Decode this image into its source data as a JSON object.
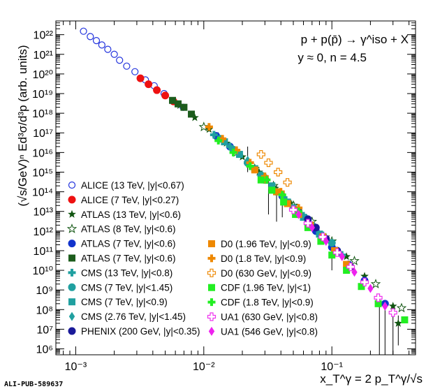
{
  "watermark": "ALI-PUB-589637",
  "chart_data": {
    "type": "scatter",
    "x_scale": "log",
    "y_scale": "log",
    "xlim": [
      0.0007,
      0.45
    ],
    "ylim": [
      500000,
      5e+22
    ],
    "ylabel": "(√s/GeV)ⁿ Ed³σ/d³p (arb. units)",
    "xlabel": "x_T^γ = 2 p_T^γ/√s",
    "annotation_lines": [
      "p + p(p̄) → γ^iso + X",
      "y ≈ 0, n = 4.5"
    ],
    "x_ticks": [
      "10⁻³",
      "10⁻²",
      "10⁻¹"
    ],
    "y_ticks": [
      "10⁶",
      "10⁷",
      "10⁸",
      "10⁹",
      "10¹⁰",
      "10¹¹",
      "10¹²",
      "10¹³",
      "10¹⁴",
      "10¹⁵",
      "10¹⁶",
      "10¹⁷",
      "10¹⁸",
      "10¹⁹",
      "10²⁰",
      "10²¹",
      "10²²"
    ],
    "legend_placement": "lower-left",
    "series": [
      {
        "name": "ALICE (13 TeV, |y|<0.67)",
        "color": "#2233dd",
        "marker": "circle-open",
        "points": [
          [
            0.00115,
            1.5e+22
          ],
          [
            0.0013,
            8e+21
          ],
          [
            0.00145,
            5e+21
          ],
          [
            0.0016,
            3e+21
          ],
          [
            0.00178,
            1.8e+21
          ],
          [
            0.002,
            1e+21
          ],
          [
            0.0022,
            5e+20
          ],
          [
            0.0025,
            2.5e+20
          ],
          [
            0.0029,
            1.3e+20
          ],
          [
            0.0035,
            5e+19
          ],
          [
            0.0041,
            2.5e+19
          ],
          [
            0.0049,
            1e+19
          ],
          [
            0.0058,
            4e+18
          ],
          [
            0.0069,
            2e+18
          ]
        ]
      },
      {
        "name": "ALICE (7 TeV, |y|<0.27)",
        "color": "#ee1111",
        "marker": "circle",
        "points": [
          [
            0.0032,
            6e+19
          ],
          [
            0.0037,
            3e+19
          ],
          [
            0.0043,
            1.5e+19
          ],
          [
            0.005,
            8e+18
          ],
          [
            0.0058,
            4e+18
          ]
        ]
      },
      {
        "name": "ATLAS (13 TeV, |y|<0.6)",
        "color": "#115511",
        "marker": "star",
        "points": [
          [
            0.0065,
            2.5e+18
          ],
          [
            0.0085,
            6e+17
          ],
          [
            0.011,
            1.5e+17
          ],
          [
            0.015,
            3e+16
          ],
          [
            0.02,
            6000000000000000.0
          ],
          [
            0.027,
            1000000000000000.0
          ],
          [
            0.036,
            150000000000000.0
          ],
          [
            0.048,
            25000000000000.0
          ],
          [
            0.065,
            4000000000000.0
          ],
          [
            0.09,
            500000000000.0
          ],
          [
            0.13,
            50000000000.0
          ],
          [
            0.18,
            5000000000.0
          ],
          [
            0.3,
            150000000.0
          ],
          [
            0.33,
            20000000.0
          ]
        ]
      },
      {
        "name": "ATLAS (8 TeV, |y|<0.6)",
        "color": "#115511",
        "marker": "star-open",
        "points": [
          [
            0.01,
            2e+17
          ],
          [
            0.013,
            6e+16
          ],
          [
            0.018,
            1e+16
          ],
          [
            0.025,
            1500000000000000.0
          ],
          [
            0.035,
            200000000000000.0
          ],
          [
            0.05,
            20000000000000.0
          ],
          [
            0.07,
            3000000000000.0
          ],
          [
            0.1,
            300000000000.0
          ],
          [
            0.15,
            30000000000.0
          ],
          [
            0.22,
            2000000000.0
          ],
          [
            0.35,
            120000000.0
          ]
        ]
      },
      {
        "name": "ATLAS (7 TeV, |y|<0.6)",
        "color": "#1133cc",
        "marker": "circle",
        "points": [
          [
            0.0125,
            7e+16
          ],
          [
            0.016,
            2e+16
          ],
          [
            0.022,
            3000000000000000.0
          ],
          [
            0.03,
            500000000000000.0
          ],
          [
            0.041,
            60000000000000.0
          ],
          [
            0.055,
            8000000000000.0
          ],
          [
            0.075,
            1000000000000.0
          ],
          [
            0.1,
            150000000000.0
          ],
          [
            0.135,
            20000000000.0
          ],
          [
            0.18,
            3000000000.0
          ],
          [
            0.26,
            200000000.0
          ]
        ]
      },
      {
        "name": "ATLAS (7 TeV, |y|<0.6)",
        "color": "#1c5c1c",
        "marker": "square",
        "points": [
          [
            0.0057,
            4.5e+18
          ],
          [
            0.0063,
            3e+18
          ],
          [
            0.007,
            2e+18
          ],
          [
            0.008,
            9e+17
          ]
        ]
      },
      {
        "name": "CMS (13 TeV, |y|<0.8)",
        "color": "#20a0a0",
        "marker": "cross",
        "points": [
          [
            0.012,
            8e+16
          ],
          [
            0.016,
            2e+16
          ],
          [
            0.022,
            3000000000000000.0
          ],
          [
            0.03,
            400000000000000.0
          ],
          [
            0.042,
            50000000000000.0
          ],
          [
            0.06,
            6000000000000.0
          ],
          [
            0.085,
            600000000000.0
          ],
          [
            0.12,
            60000000000.0
          ]
        ]
      },
      {
        "name": "CMS (7 TeV, |y|<1.45)",
        "color": "#20a0a0",
        "marker": "circle",
        "points": [
          [
            0.0135,
            5e+16
          ],
          [
            0.017,
            1.4e+16
          ],
          [
            0.022,
            3000000000000000.0
          ],
          [
            0.028,
            700000000000000.0
          ],
          [
            0.037,
            100000000000000.0
          ],
          [
            0.05,
            15000000000000.0
          ],
          [
            0.07,
            2000000000000.0
          ],
          [
            0.1,
            250000000000.0
          ]
        ]
      },
      {
        "name": "CMS (7 TeV, |y|<0.9)",
        "color": "#20a0a0",
        "marker": "square",
        "points": [
          [
            0.0145,
            3.5e+16
          ],
          [
            0.019,
            8000000000000000.0
          ],
          [
            0.025,
            1500000000000000.0
          ],
          [
            0.034,
            200000000000000.0
          ],
          [
            0.045,
            30000000000000.0
          ],
          [
            0.06,
            5000000000000.0
          ],
          [
            0.08,
            700000000000.0
          ]
        ]
      },
      {
        "name": "CMS (2.76 TeV, |y|<1.45)",
        "color": "#20a0a0",
        "marker": "diamond",
        "points": [
          [
            0.016,
            2e+16
          ],
          [
            0.022,
            4000000000000000.0
          ],
          [
            0.03,
            600000000000000.0
          ],
          [
            0.04,
            80000000000000.0
          ],
          [
            0.055,
            10000000000000.0
          ]
        ]
      },
      {
        "name": "PHENIX (200 GeV, |y|<0.35)",
        "color": "#1a1a99",
        "marker": "circle",
        "points": [
          [
            0.055,
            10000000000000.0
          ],
          [
            0.065,
            4000000000000.0
          ],
          [
            0.075,
            1500000000000.0
          ],
          [
            0.09,
            400000000000.0
          ],
          [
            0.11,
            100000000000.0
          ],
          [
            0.14,
            15000000000.0
          ]
        ]
      },
      {
        "name": "D0 (1.96 TeV, |y|<0.9)",
        "color": "#ee8800",
        "marker": "square",
        "points": [
          [
            0.025,
            1300000000000000.0
          ],
          [
            0.03,
            400000000000000.0
          ],
          [
            0.037,
            100000000000000.0
          ],
          [
            0.045,
            25000000000000.0
          ],
          [
            0.055,
            7000000000000.0
          ],
          [
            0.068,
            2000000000000.0
          ],
          [
            0.085,
            500000000000.0
          ],
          [
            0.105,
            100000000000.0
          ],
          [
            0.13,
            20000000000.0
          ]
        ]
      },
      {
        "name": "D0 (1.8 TeV, |y|<0.9)",
        "color": "#ee8800",
        "marker": "cross",
        "points": [
          [
            0.011,
            2e+17
          ],
          [
            0.014,
            5e+16
          ],
          [
            0.018,
            1.3e+16
          ],
          [
            0.023,
            3000000000000000.0
          ],
          [
            0.03,
            600000000000000.0
          ],
          [
            0.04,
            100000000000000.0
          ],
          [
            0.055,
            15000000000000.0
          ]
        ]
      },
      {
        "name": "D0 (630 GeV, |y|<0.9)",
        "color": "#ee8800",
        "marker": "cross-open",
        "points": [
          [
            0.028,
            8000000000000000.0
          ],
          [
            0.032,
            3000000000000000.0
          ],
          [
            0.038,
            1000000000000000.0
          ],
          [
            0.045,
            300000000000000.0
          ]
        ]
      },
      {
        "name": "CDF (1.96 TeV, |y|<1)",
        "color": "#22ee22",
        "marker": "square",
        "points": [
          [
            0.028,
            400000000000000.0
          ],
          [
            0.034,
            120000000000000.0
          ],
          [
            0.042,
            30000000000000.0
          ],
          [
            0.052,
            7000000000000.0
          ],
          [
            0.065,
            1500000000000.0
          ],
          [
            0.082,
            300000000000.0
          ],
          [
            0.1,
            60000000000.0
          ],
          [
            0.13,
            10000000000.0
          ],
          [
            0.17,
            1500000000.0
          ],
          [
            0.23,
            200000000.0
          ],
          [
            0.37,
            30000000.0
          ]
        ]
      },
      {
        "name": "CDF (1.8 TeV, |y|<0.9)",
        "color": "#22ee22",
        "marker": "cross",
        "points": [
          [
            0.013,
            4e+16
          ],
          [
            0.017,
            1e+16
          ],
          [
            0.023,
            2000000000000000.0
          ],
          [
            0.031,
            400000000000000.0
          ],
          [
            0.041,
            70000000000000.0
          ],
          [
            0.055,
            10000000000000.0
          ]
        ]
      },
      {
        "name": "UA1 (630 GeV, |y|<0.8)",
        "color": "#ee33ee",
        "marker": "cross-open",
        "points": [
          [
            0.05,
            12000000000000.0
          ],
          [
            0.065,
            2500000000000.0
          ],
          [
            0.085,
            500000000000.0
          ],
          [
            0.11,
            80000000000.0
          ],
          [
            0.14,
            15000000000.0
          ],
          [
            0.18,
            2500000000.0
          ],
          [
            0.23,
            400000000.0
          ],
          [
            0.3,
            70000000.0
          ]
        ]
      },
      {
        "name": "UA1 (546 GeV, |y|<0.8)",
        "color": "#ee22ee",
        "marker": "diamond",
        "points": [
          [
            0.055,
            7000000000000.0
          ],
          [
            0.07,
            1500000000000.0
          ],
          [
            0.09,
            300000000000.0
          ],
          [
            0.12,
            50000000000.0
          ],
          [
            0.15,
            8000000000.0
          ],
          [
            0.2,
            1200000000.0
          ],
          [
            0.26,
            150000000.0
          ]
        ]
      }
    ],
    "error_bars": [
      {
        "x": 0.022,
        "y_low": 1000000000000000.0,
        "y_high": 2e+16
      },
      {
        "x": 0.032,
        "y_low": 7000000000000.0,
        "y_high": 500000000000000.0
      },
      {
        "x": 0.037,
        "y_low": 3000000000000.0,
        "y_high": 200000000000000.0
      },
      {
        "x": 0.041,
        "y_low": 5000000000000.0,
        "y_high": 60000000000000.0
      },
      {
        "x": 0.1,
        "y_low": 10000000000.0,
        "y_high": 150000000000.0
      },
      {
        "x": 0.235,
        "y_low": 500000,
        "y_high": 400000000.0
      },
      {
        "x": 0.26,
        "y_low": 500000,
        "y_high": 200000000.0
      },
      {
        "x": 0.3,
        "y_low": 500000,
        "y_high": 150000000.0
      },
      {
        "x": 0.33,
        "y_low": 1500000.0,
        "y_high": 50000000.0
      }
    ]
  }
}
